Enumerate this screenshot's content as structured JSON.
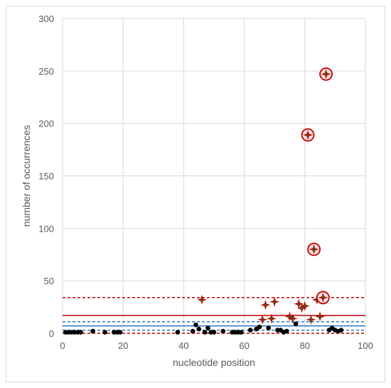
{
  "chart_data": {
    "type": "scatter",
    "title": "",
    "xlabel": "nucleotide position",
    "ylabel": "number of occurrences",
    "xlim": [
      0,
      100
    ],
    "ylim": [
      0,
      300
    ],
    "x_ticks": [
      0,
      20,
      40,
      60,
      80,
      100
    ],
    "y_ticks": [
      0,
      50,
      100,
      150,
      200,
      250,
      300
    ],
    "grid": true,
    "reference_lines": [
      {
        "y": 34,
        "style": "dashed",
        "color": "#c00000"
      },
      {
        "y": 17,
        "style": "solid",
        "color": "#c00000"
      },
      {
        "y": 11,
        "style": "dashed",
        "color": "#2e75b6"
      },
      {
        "y": 7,
        "style": "solid",
        "color": "#2e75b6"
      },
      {
        "y": 3,
        "style": "dashed",
        "color": "#2e75b6"
      },
      {
        "y": 0,
        "style": "dashed",
        "color": "#c00000"
      }
    ],
    "series": [
      {
        "marker": "circle",
        "color": "#000000",
        "points": [
          [
            1,
            1
          ],
          [
            2,
            1
          ],
          [
            3,
            1
          ],
          [
            4,
            1
          ],
          [
            5,
            1
          ],
          [
            6,
            1
          ],
          [
            10,
            2
          ],
          [
            14,
            1
          ],
          [
            17,
            1
          ],
          [
            18,
            1
          ],
          [
            19,
            1
          ],
          [
            38,
            1
          ],
          [
            43,
            2
          ],
          [
            44,
            8
          ],
          [
            45,
            4
          ],
          [
            47,
            1
          ],
          [
            48,
            5
          ],
          [
            49,
            1
          ],
          [
            50,
            1
          ],
          [
            53,
            2
          ],
          [
            56,
            1
          ],
          [
            57,
            1
          ],
          [
            58,
            1
          ],
          [
            59,
            1
          ],
          [
            62,
            3
          ],
          [
            64,
            4
          ],
          [
            65,
            6
          ],
          [
            68,
            5
          ],
          [
            71,
            3
          ],
          [
            72,
            3
          ],
          [
            73,
            1
          ],
          [
            74,
            2
          ],
          [
            77,
            9
          ],
          [
            88,
            3
          ],
          [
            89,
            5
          ],
          [
            90,
            3
          ],
          [
            91,
            2
          ],
          [
            92,
            3
          ]
        ]
      },
      {
        "marker": "star",
        "color": "#c00000",
        "points": [
          [
            46,
            32
          ],
          [
            66,
            13
          ],
          [
            67,
            27
          ],
          [
            69,
            14
          ],
          [
            70,
            30
          ],
          [
            75,
            16
          ],
          [
            76,
            14
          ],
          [
            78,
            28
          ],
          [
            79,
            24
          ],
          [
            80,
            26
          ],
          [
            82,
            13
          ],
          [
            84,
            32
          ],
          [
            85,
            16
          ]
        ]
      },
      {
        "marker": "circled-star",
        "color": "#c00000",
        "points": [
          [
            87,
            247
          ],
          [
            81,
            189
          ],
          [
            83,
            80
          ],
          [
            86,
            34
          ]
        ]
      }
    ]
  }
}
